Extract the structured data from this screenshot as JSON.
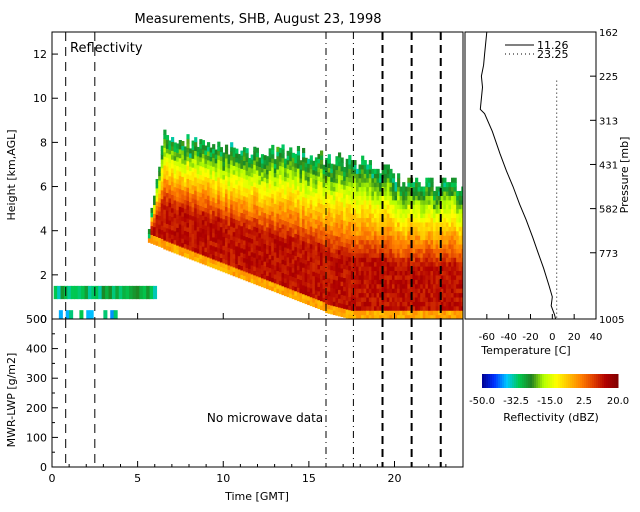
{
  "title": "Measurements, SHB, August 23, 1998",
  "chart_data": [
    {
      "type": "heatmap",
      "panel_label": "Reflectivity",
      "ylabel": "Height [km,AGL]",
      "xlabel": "Time [GMT]",
      "xlim": [
        0,
        24
      ],
      "ylim": [
        0,
        13
      ],
      "xticks": [
        0,
        5,
        10,
        15,
        20
      ],
      "yticks": [
        0,
        2,
        4,
        6,
        8,
        10,
        12
      ],
      "vertical_markers": [
        {
          "time": 0.8,
          "style": "dashed"
        },
        {
          "time": 2.5,
          "style": "dashed"
        },
        {
          "time": 16.0,
          "style": "dash-dot"
        },
        {
          "time": 17.6,
          "style": "dash-dot"
        },
        {
          "time": 19.3,
          "style": "thick-dashed"
        },
        {
          "time": 21.0,
          "style": "thick-dashed"
        },
        {
          "time": 22.7,
          "style": "thick-dashed"
        }
      ],
      "echo_regions": [
        {
          "name": "low layer",
          "t_start": 0.1,
          "t_end": 6.0,
          "bottom_km": 0.9,
          "top_km": 1.5,
          "dbz_range": [
            -35,
            -25
          ]
        },
        {
          "name": "surface clutter",
          "t_start": 0.0,
          "t_end": 3.8,
          "bottom_km": 0.0,
          "top_km": 0.4,
          "dbz_range": [
            -40,
            -30
          ]
        },
        {
          "name": "main precipitation",
          "t_start": 5.6,
          "t_end": 24.0,
          "bottom_km": 0.0,
          "top_km": 8.5,
          "dbz_range": [
            -30,
            12
          ]
        }
      ]
    },
    {
      "type": "line",
      "ylabel": "MWR-LWP [g/m2]",
      "xlabel": "Time [GMT]",
      "xlim": [
        0,
        24
      ],
      "ylim": [
        0,
        500
      ],
      "xticks": [
        0,
        5,
        10,
        15,
        20
      ],
      "yticks": [
        0,
        100,
        200,
        300,
        400,
        500
      ],
      "yticks_minor": [
        50,
        150,
        250,
        350,
        450
      ],
      "annotation": "No microwave data",
      "series": []
    },
    {
      "type": "line",
      "xlabel": "Temperature [C]",
      "ylabel_right": "Pressure [mb]",
      "xlim": [
        -80,
        40
      ],
      "xticks": [
        -60,
        -40,
        -20,
        0,
        20,
        40
      ],
      "right_tick_labels": [
        "162",
        "225",
        "313",
        "431",
        "582",
        "773",
        "1005"
      ],
      "right_tick_heights_km": [
        13,
        11,
        9,
        7,
        5,
        3,
        0
      ],
      "series": [
        {
          "name": "11.26",
          "style": "solid",
          "points": [
            [
              -60,
              13
            ],
            [
              -62,
              12
            ],
            [
              -63,
              11.5
            ],
            [
              -65,
              11
            ],
            [
              -64,
              10.5
            ],
            [
              -66,
              9.5
            ],
            [
              -62,
              9.3
            ],
            [
              -55,
              8.5
            ],
            [
              -48,
              7.5
            ],
            [
              -42,
              6.7
            ],
            [
              -36,
              6
            ],
            [
              -30,
              5.2
            ],
            [
              -24,
              4.5
            ],
            [
              -18,
              3.7
            ],
            [
              -13,
              3
            ],
            [
              -8,
              2.3
            ],
            [
              -3,
              1.5
            ],
            [
              0,
              1
            ],
            [
              -1,
              0.6
            ],
            [
              2,
              0.2
            ],
            [
              3,
              0
            ]
          ]
        },
        {
          "name": "23.25",
          "style": "dotted",
          "points": [
            [
              4,
              10.8
            ],
            [
              4,
              9
            ],
            [
              4,
              7
            ],
            [
              4,
              5
            ],
            [
              4,
              3
            ],
            [
              4,
              1
            ],
            [
              4,
              0
            ]
          ]
        }
      ]
    },
    {
      "type": "colorbar",
      "label": "Reflectivity (dBZ)",
      "tick_labels": [
        "-50.0",
        "-32.5",
        "-15.0",
        "2.5",
        "20.0"
      ],
      "range": [
        -50,
        20
      ],
      "colors": [
        "#000090",
        "#0030ff",
        "#00c8ff",
        "#00c850",
        "#208020",
        "#b4ff00",
        "#ffff00",
        "#ffc000",
        "#ff8000",
        "#e04000",
        "#b00000",
        "#800000"
      ]
    }
  ]
}
